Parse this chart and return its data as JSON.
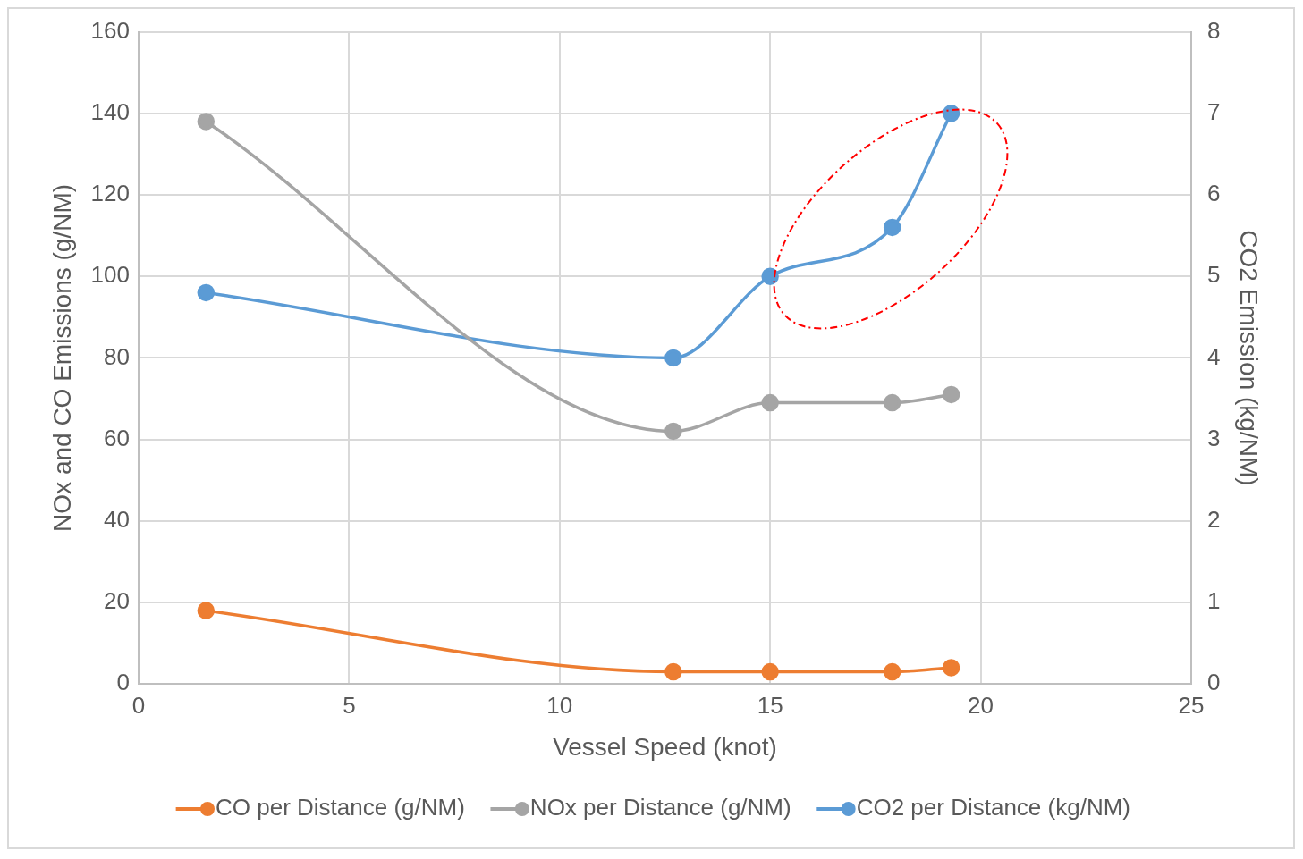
{
  "chart_data": {
    "type": "line",
    "xlabel": "Vessel Speed (knot)",
    "ylabel": "NOx and CO Emissions (g/NM)",
    "y2label": "CO2 Emission (kg/NM)",
    "x": [
      1.6,
      12.7,
      15,
      17.9,
      19.3
    ],
    "series": [
      {
        "name": "CO per Distance (g/NM)",
        "color": "#ed7d31",
        "values": [
          18,
          3,
          3,
          3,
          4
        ]
      },
      {
        "name": "NOx per Distance (g/NM)",
        "color": "#a5a5a5",
        "values": [
          138,
          62,
          69,
          69,
          71
        ]
      },
      {
        "name": "CO2 per Distance (kg/NM)",
        "color": "#5b9bd5",
        "values": [
          4.8,
          4.0,
          5.0,
          5.6,
          7.0
        ],
        "axis": "y2"
      }
    ],
    "xlim": [
      0,
      25
    ],
    "xticks": [
      0,
      5,
      10,
      15,
      20,
      25
    ],
    "ylim": [
      0,
      160
    ],
    "yticks": [
      0,
      20,
      40,
      60,
      80,
      100,
      120,
      140,
      160
    ],
    "y2lim": [
      0,
      8
    ],
    "y2ticks": [
      0,
      1,
      2,
      3,
      4,
      5,
      6,
      7,
      8
    ],
    "grid": true,
    "legend": "bottom",
    "marker": "circle",
    "line_style": "solid"
  }
}
